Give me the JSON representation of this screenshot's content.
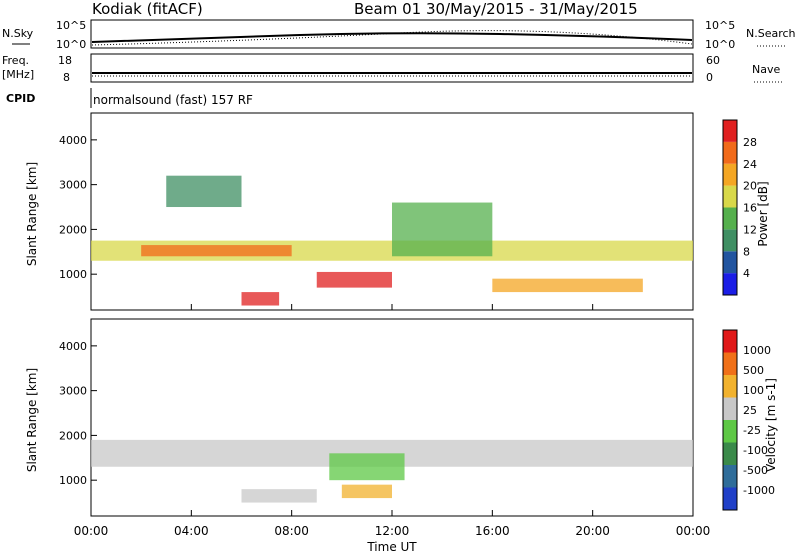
{
  "header": {
    "station": "Kodiak (fitACF)",
    "beam_and_dates": "Beam 01  30/May/2015 - 31/May/2015"
  },
  "top_panels": {
    "nsky_label": "N.Sky",
    "nsky_ticks": [
      "10^5",
      "10^0"
    ],
    "nsearch_label": "N.Search",
    "nsearch_ticks": [
      "10^5",
      "10^0"
    ],
    "freq_label_1": "Freq.",
    "freq_label_2": "[MHz]",
    "freq_ticks": [
      "18",
      "8"
    ],
    "nave_label": "Nave",
    "nave_ticks": [
      "60",
      "0"
    ],
    "cpid_label": "CPID",
    "cpid_value": "normalsound (fast) 157 RF"
  },
  "chart_data": [
    {
      "type": "heatmap",
      "name": "power",
      "ylabel": "Slant Range [km]",
      "y_ticks": [
        1000,
        2000,
        3000,
        4000
      ],
      "ylim": [
        200,
        4600
      ],
      "xlim": [
        0,
        24
      ],
      "colorbar_label": "Power [dB]",
      "colorbar_ticks": [
        "4",
        "8",
        "12",
        "16",
        "20",
        "24",
        "28"
      ],
      "colorbar_colors": [
        "#1b1ee6",
        "#2255a0",
        "#3f8f63",
        "#55b04d",
        "#d8d84a",
        "#f4a623",
        "#f16a1a",
        "#e02020"
      ],
      "bands": [
        {
          "x": [
            0,
            24
          ],
          "y": [
            1300,
            1750
          ],
          "level": 4
        },
        {
          "x": [
            2,
            8
          ],
          "y": [
            1400,
            1650
          ],
          "level": 6
        },
        {
          "x": [
            9,
            12
          ],
          "y": [
            700,
            1050
          ],
          "level": 7
        },
        {
          "x": [
            6,
            7.5
          ],
          "y": [
            300,
            600
          ],
          "level": 7
        },
        {
          "x": [
            12,
            16
          ],
          "y": [
            1400,
            2600
          ],
          "level": 3
        },
        {
          "x": [
            16,
            22
          ],
          "y": [
            600,
            900
          ],
          "level": 5
        },
        {
          "x": [
            3,
            6
          ],
          "y": [
            2500,
            3200
          ],
          "level": 2
        }
      ]
    },
    {
      "type": "heatmap",
      "name": "velocity",
      "ylabel": "Slant Range [km]",
      "y_ticks": [
        1000,
        2000,
        3000,
        4000
      ],
      "ylim": [
        200,
        4600
      ],
      "xlim": [
        0,
        24
      ],
      "colorbar_label": "Velocity [m s-1]",
      "colorbar_ticks": [
        "1000",
        "500",
        "100",
        "25",
        "-25",
        "-100",
        "-500",
        "-1000"
      ],
      "colorbar_colors": [
        "#2040c8",
        "#2f6d9a",
        "#3a8a4a",
        "#5ec845",
        "#c8c8c8",
        "#f2b22e",
        "#f07018",
        "#e01818"
      ],
      "bands": [
        {
          "x": [
            0,
            24
          ],
          "y": [
            1300,
            1900
          ],
          "level": 4
        },
        {
          "x": [
            9.5,
            12.5
          ],
          "y": [
            1000,
            1600
          ],
          "level": 3
        },
        {
          "x": [
            10,
            12
          ],
          "y": [
            600,
            900
          ],
          "level": 5
        },
        {
          "x": [
            6,
            9
          ],
          "y": [
            500,
            800
          ],
          "level": 4
        }
      ]
    }
  ],
  "x_axis": {
    "ticks": [
      "00:00",
      "04:00",
      "08:00",
      "12:00",
      "16:00",
      "20:00",
      "00:00"
    ],
    "label": "Time UT"
  },
  "y_axis_label": "Slant Range [km]"
}
